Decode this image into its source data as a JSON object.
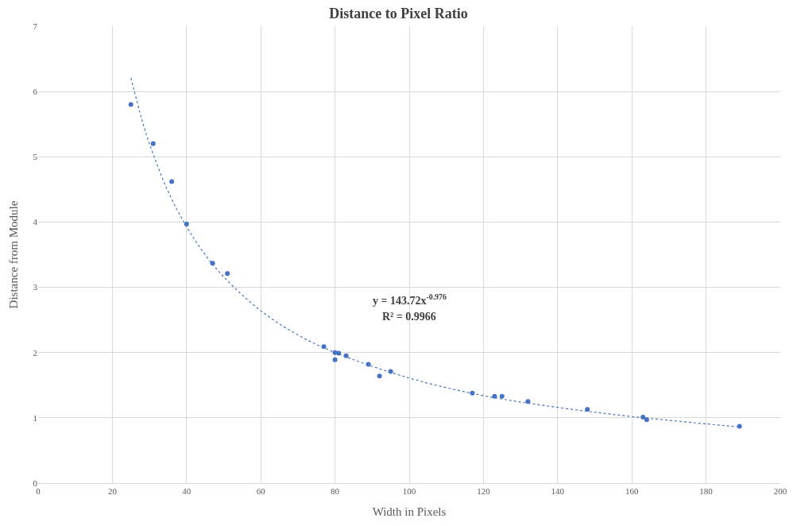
{
  "chart_data": {
    "type": "scatter",
    "title": "Distance to Pixel Ratio",
    "xlabel": "Width in Pixels",
    "ylabel": "Distance from Module",
    "xlim": [
      0,
      200
    ],
    "xticks": [
      0,
      20,
      40,
      60,
      80,
      100,
      120,
      140,
      160,
      180,
      200
    ],
    "ylim": [
      0,
      7
    ],
    "yticks": [
      0,
      1,
      2,
      3,
      4,
      5,
      6,
      7
    ],
    "grid": true,
    "annotations": [
      "y = 143.72x$^{-0.976}$",
      "R² = 0.9966"
    ],
    "series": [
      {
        "color": "#4472c4",
        "marker": "circle",
        "x": [
          25,
          31,
          36,
          40,
          47,
          51,
          77,
          80,
          80,
          81,
          83,
          89,
          92,
          95,
          117,
          123,
          125,
          132,
          148,
          163,
          164,
          189
        ],
        "values": [
          5.8,
          5.2,
          4.62,
          3.97,
          3.37,
          3.21,
          2.09,
          2.0,
          1.89,
          1.99,
          1.95,
          1.82,
          1.64,
          1.71,
          1.38,
          1.33,
          1.33,
          1.25,
          1.13,
          1.01,
          0.97,
          0.87
        ]
      },
      {
        "type": "line",
        "color": "#4472c4",
        "line_style": "dotted",
        "marker": "none",
        "x": [
          25,
          28,
          30,
          35,
          40,
          45,
          50,
          60,
          70,
          80,
          100,
          120,
          140,
          160,
          189
        ],
        "values": [
          6.21,
          5.56,
          5.2,
          4.47,
          3.93,
          3.5,
          3.16,
          2.64,
          2.27,
          2.0,
          1.61,
          1.34,
          1.16,
          1.02,
          0.86
        ]
      }
    ]
  }
}
